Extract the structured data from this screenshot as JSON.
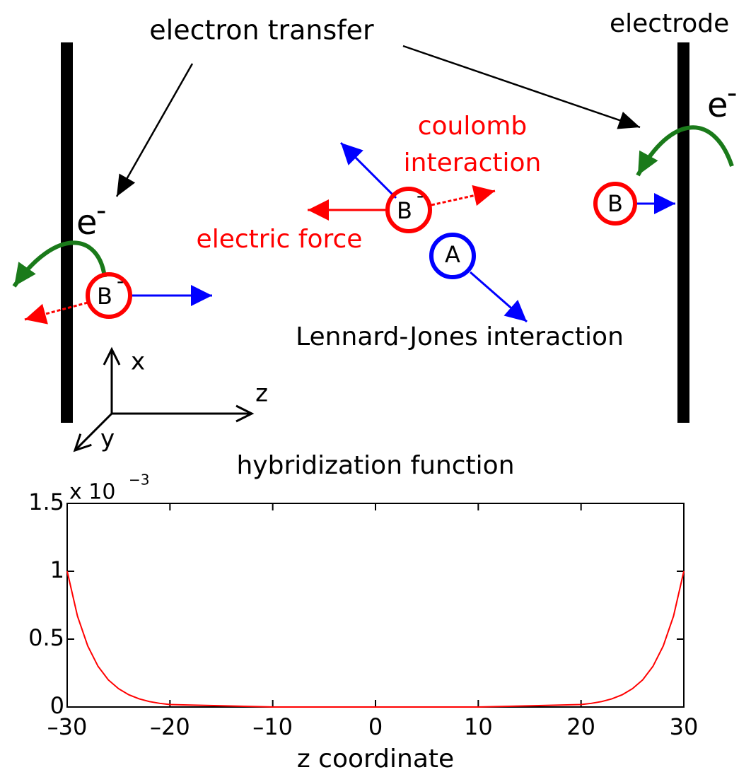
{
  "diagram": {
    "electron_transfer": "electron transfer",
    "electrode": "electrode",
    "electron": "e",
    "electron_charge": "-",
    "coulomb_1": "coulomb",
    "coulomb_2": "interaction",
    "electric_force": "electric force",
    "lennard_jones": "Lennard-Jones interaction",
    "particle_b": "B",
    "particle_b_charge": "-",
    "particle_a": "A",
    "axis_x": "x",
    "axis_z": "z",
    "axis_y": "y"
  },
  "chart_data": {
    "type": "line",
    "title": "hybridization function",
    "xlabel": "z coordinate",
    "y_scale": {
      "base": "x 10",
      "exponent": "−3"
    },
    "x": [
      -30,
      -29,
      -28,
      -27,
      -26,
      -25,
      -24,
      -23,
      -22,
      -21,
      -20,
      -10,
      0,
      10,
      20,
      21,
      22,
      23,
      24,
      25,
      26,
      27,
      28,
      29,
      30
    ],
    "series": [
      {
        "color": "#ff0000",
        "values": [
          1,
          0.67,
          0.45,
          0.3,
          0.2,
          0.135,
          0.09,
          0.06,
          0.04,
          0.027,
          0.018,
          0,
          0,
          0,
          0.018,
          0.027,
          0.04,
          0.06,
          0.09,
          0.135,
          0.2,
          0.3,
          0.45,
          0.67,
          1
        ]
      }
    ],
    "xlim": [
      -30,
      30
    ],
    "ylim": [
      0,
      1.5
    ],
    "xticks": [
      {
        "value": -30,
        "label": "–30"
      },
      {
        "value": -20,
        "label": "–20"
      },
      {
        "value": -10,
        "label": "–10"
      },
      0,
      10,
      20,
      30
    ],
    "yticks": [
      0,
      0.5,
      1,
      1.5
    ]
  }
}
